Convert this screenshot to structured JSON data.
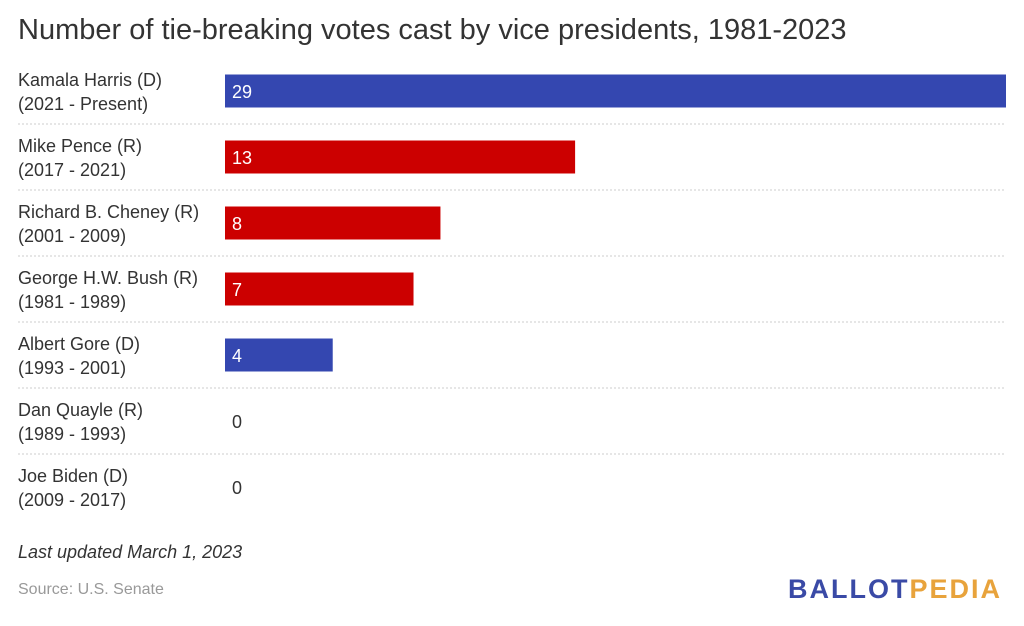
{
  "title": "Number of tie-breaking votes cast by vice presidents, 1981-2023",
  "note": "Last updated March 1, 2023",
  "source": "Source: U.S. Senate",
  "logo": {
    "part1": "BALLOT",
    "part2": "PEDIA"
  },
  "colors": {
    "D": "#3447b0",
    "R": "#cc0000",
    "text": "#333333",
    "grid": "#cccccc"
  },
  "chart_data": {
    "type": "bar",
    "orientation": "horizontal",
    "title": "Number of tie-breaking votes cast by vice presidents, 1981-2023",
    "xlim": [
      0,
      29
    ],
    "grid": "dotted row separators",
    "categories": [
      {
        "name": "Kamala Harris (D)",
        "term": "(2021 - Present)",
        "party": "D",
        "value": 29
      },
      {
        "name": "Mike Pence (R)",
        "term": "(2017 - 2021)",
        "party": "R",
        "value": 13
      },
      {
        "name": "Richard B. Cheney (R)",
        "term": "(2001 - 2009)",
        "party": "R",
        "value": 8
      },
      {
        "name": "George H.W. Bush (R)",
        "term": "(1981 - 1989)",
        "party": "R",
        "value": 7
      },
      {
        "name": "Albert Gore (D)",
        "term": "(1993 - 2001)",
        "party": "D",
        "value": 4
      },
      {
        "name": "Dan Quayle (R)",
        "term": "(1989 - 1993)",
        "party": "R",
        "value": 0
      },
      {
        "name": "Joe Biden (D)",
        "term": "(2009 - 2017)",
        "party": "D",
        "value": 0
      }
    ]
  }
}
